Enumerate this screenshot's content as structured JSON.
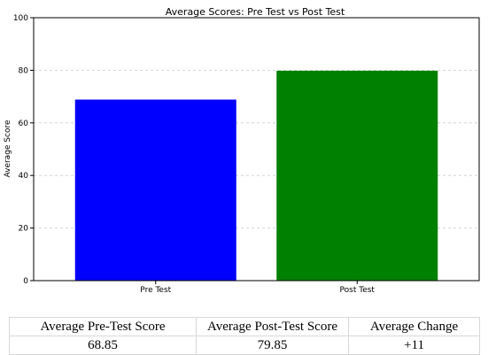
{
  "chart_data": {
    "type": "bar",
    "title": "Average Scores: Pre Test vs Post Test",
    "xlabel": "",
    "ylabel": "Average Score",
    "categories": [
      "Pre Test",
      "Post Test"
    ],
    "values": [
      68.85,
      79.85
    ],
    "ylim": [
      0,
      100
    ],
    "yticks": [
      0,
      20,
      40,
      60,
      80,
      100
    ],
    "grid": "y-dashed",
    "colors": [
      "#0000ff",
      "#008000"
    ]
  },
  "summary_table": {
    "headers": [
      "Average Pre-Test Score",
      "Average Post-Test Score",
      "Average Change"
    ],
    "row": [
      "68.85",
      "79.85",
      "+11"
    ]
  }
}
